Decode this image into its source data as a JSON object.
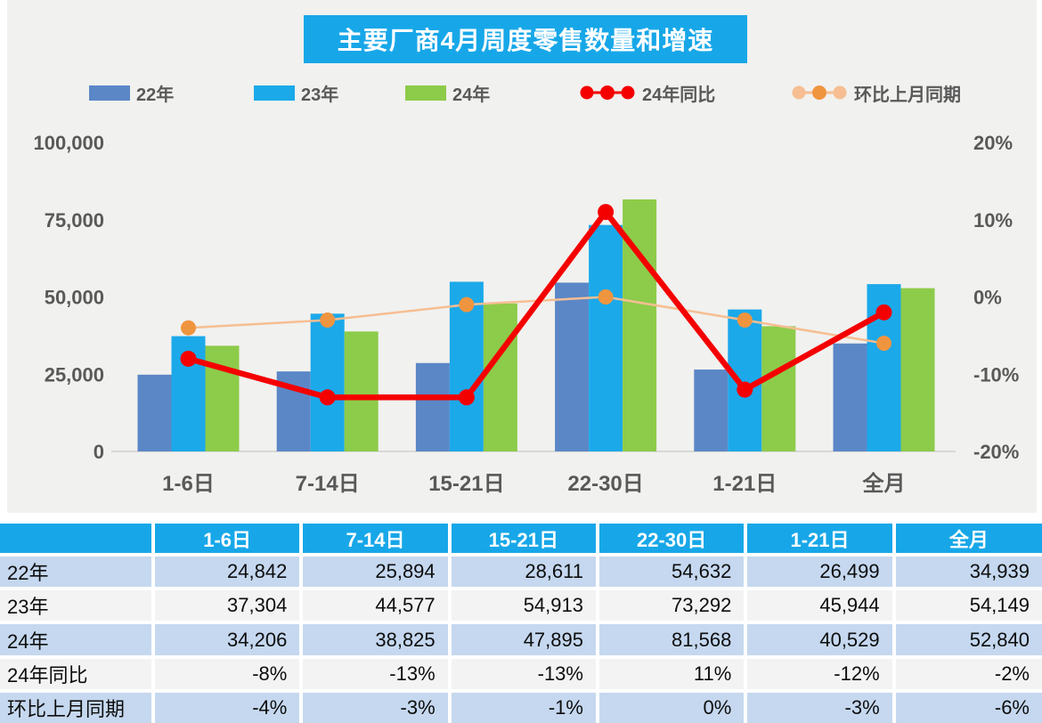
{
  "title": {
    "text": "主要厂商4月周度零售数量和增速"
  },
  "colors": {
    "accent_blue": "#17a7e8",
    "bar_22": "#5b87c7",
    "bar_23": "#1ba9ea",
    "bar_24": "#8dcb4a",
    "line_yoy": "#f40000",
    "line_mom": "#f6be92",
    "marker_mom": "#f0953f",
    "table_row_alt": "#c5d8ef",
    "table_row_plain": "#f3f3f3",
    "axis_text": "#595959"
  },
  "chart_data": {
    "type": "combo",
    "title": "主要厂商4月周度零售数量和增速",
    "categories": [
      "1-6日",
      "7-14日",
      "15-21日",
      "22-30日",
      "1-21日",
      "全月"
    ],
    "series": [
      {
        "name": "22年",
        "type": "bar",
        "axis": "left",
        "color": "#5b87c7",
        "values": [
          24842,
          25894,
          28611,
          54632,
          26499,
          34939
        ]
      },
      {
        "name": "23年",
        "type": "bar",
        "axis": "left",
        "color": "#1ba9ea",
        "values": [
          37304,
          44577,
          54913,
          73292,
          45944,
          54149
        ]
      },
      {
        "name": "24年",
        "type": "bar",
        "axis": "left",
        "color": "#8dcb4a",
        "values": [
          34206,
          38825,
          47895,
          81568,
          40529,
          52840
        ]
      },
      {
        "name": "24年同比",
        "type": "line",
        "axis": "right",
        "color": "#f40000",
        "marker_color": "#f40000",
        "values_pct": [
          -8,
          -13,
          -13,
          11,
          -12,
          -2
        ]
      },
      {
        "name": "环比上月同期",
        "type": "line",
        "axis": "right",
        "color": "#f6be92",
        "marker_color": "#f0953f",
        "values_pct": [
          -4,
          -3,
          -1,
          0,
          -3,
          -6
        ]
      }
    ],
    "left_axis": {
      "min": 0,
      "max": 100000,
      "ticks": [
        "100,000",
        "75,000",
        "50,000",
        "25,000",
        "0"
      ]
    },
    "right_axis": {
      "min": -20,
      "max": 20,
      "ticks": [
        "20%",
        "10%",
        "0%",
        "-10%",
        "-20%"
      ]
    },
    "grid": "off",
    "legend_position": "top"
  },
  "table": {
    "header": [
      "",
      "1-6日",
      "7-14日",
      "15-21日",
      "22-30日",
      "1-21日",
      "全月"
    ],
    "rows": [
      {
        "label": "22年",
        "cells": [
          "24,842",
          "25,894",
          "28,611",
          "54,632",
          "26,499",
          "34,939"
        ]
      },
      {
        "label": "23年",
        "cells": [
          "37,304",
          "44,577",
          "54,913",
          "73,292",
          "45,944",
          "54,149"
        ]
      },
      {
        "label": "24年",
        "cells": [
          "34,206",
          "38,825",
          "47,895",
          "81,568",
          "40,529",
          "52,840"
        ]
      },
      {
        "label": "24年同比",
        "cells": [
          "-8%",
          "-13%",
          "-13%",
          "11%",
          "-12%",
          "-2%"
        ]
      },
      {
        "label": "环比上月同期",
        "cells": [
          "-4%",
          "-3%",
          "-1%",
          "0%",
          "-3%",
          "-6%"
        ]
      }
    ]
  }
}
